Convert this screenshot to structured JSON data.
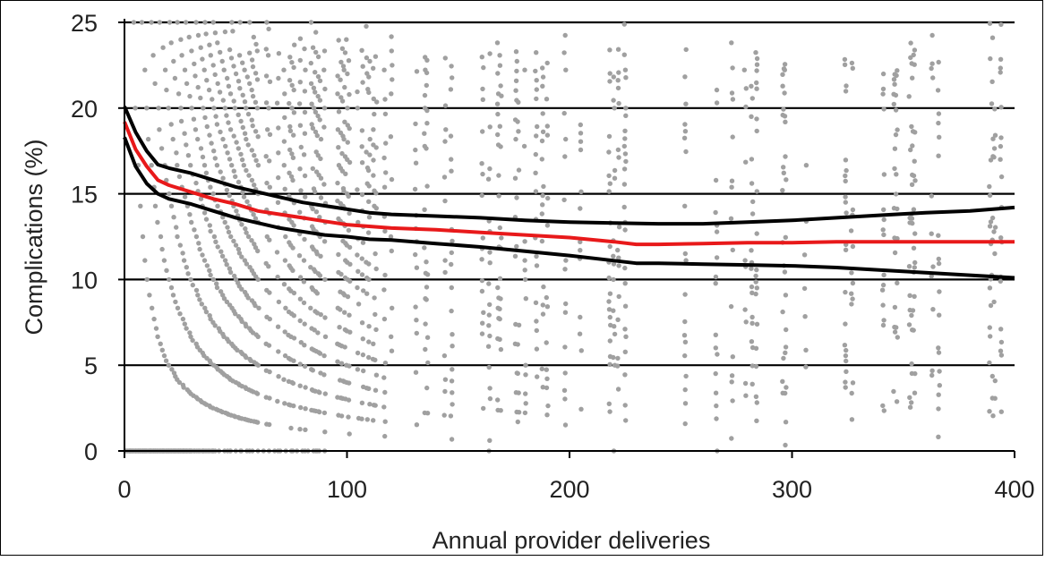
{
  "chart_data": {
    "type": "scatter",
    "title": "",
    "xlabel": "Annual provider deliveries",
    "ylabel": "Complications (%)",
    "xlim": [
      0,
      400
    ],
    "ylim": [
      0,
      25
    ],
    "x_ticks": [
      0,
      100,
      200,
      300,
      400
    ],
    "y_ticks": [
      0,
      5,
      10,
      15,
      20,
      25
    ],
    "grid": "horizontal",
    "legend": "none",
    "colors": {
      "points": "#a0a0a0",
      "estimate": "#e8191a",
      "bounds": "#000000",
      "grid": "#000000"
    },
    "scatter_note_points": "provider-level observations, shown as grey dots",
    "lines": [
      {
        "role": "upper",
        "x": [
          0,
          5,
          10,
          15,
          20,
          30,
          40,
          50,
          60,
          70,
          80,
          90,
          100,
          110,
          120,
          140,
          160,
          180,
          200,
          220,
          240,
          260,
          280,
          300,
          320,
          340,
          360,
          380,
          400
        ],
        "y": [
          20.1,
          18.6,
          17.5,
          16.7,
          16.5,
          16.2,
          15.8,
          15.4,
          15.1,
          14.8,
          14.5,
          14.3,
          14.1,
          13.9,
          13.8,
          13.7,
          13.6,
          13.45,
          13.35,
          13.3,
          13.25,
          13.25,
          13.35,
          13.45,
          13.6,
          13.75,
          13.9,
          14.0,
          14.2
        ]
      },
      {
        "role": "estimate",
        "x": [
          0,
          5,
          10,
          15,
          20,
          30,
          40,
          50,
          60,
          70,
          80,
          90,
          100,
          110,
          120,
          140,
          160,
          180,
          200,
          220,
          230,
          240,
          260,
          280,
          300,
          320,
          340,
          360,
          380,
          400
        ],
        "y": [
          19.2,
          17.6,
          16.6,
          15.8,
          15.5,
          15.1,
          14.7,
          14.4,
          14.0,
          13.8,
          13.6,
          13.4,
          13.2,
          13.1,
          13.0,
          12.9,
          12.75,
          12.6,
          12.45,
          12.2,
          12.05,
          12.05,
          12.1,
          12.15,
          12.15,
          12.2,
          12.2,
          12.2,
          12.2,
          12.2
        ]
      },
      {
        "role": "lower",
        "x": [
          0,
          5,
          10,
          15,
          20,
          30,
          40,
          50,
          60,
          70,
          80,
          90,
          100,
          110,
          120,
          140,
          160,
          180,
          200,
          220,
          230,
          240,
          260,
          280,
          300,
          320,
          340,
          360,
          380,
          400
        ],
        "y": [
          18.3,
          16.6,
          15.6,
          15.0,
          14.7,
          14.4,
          14.0,
          13.6,
          13.3,
          13.0,
          12.8,
          12.6,
          12.5,
          12.35,
          12.3,
          12.1,
          11.9,
          11.65,
          11.4,
          11.1,
          10.95,
          10.95,
          10.9,
          10.85,
          10.8,
          10.7,
          10.55,
          10.4,
          10.25,
          10.1
        ]
      }
    ]
  }
}
